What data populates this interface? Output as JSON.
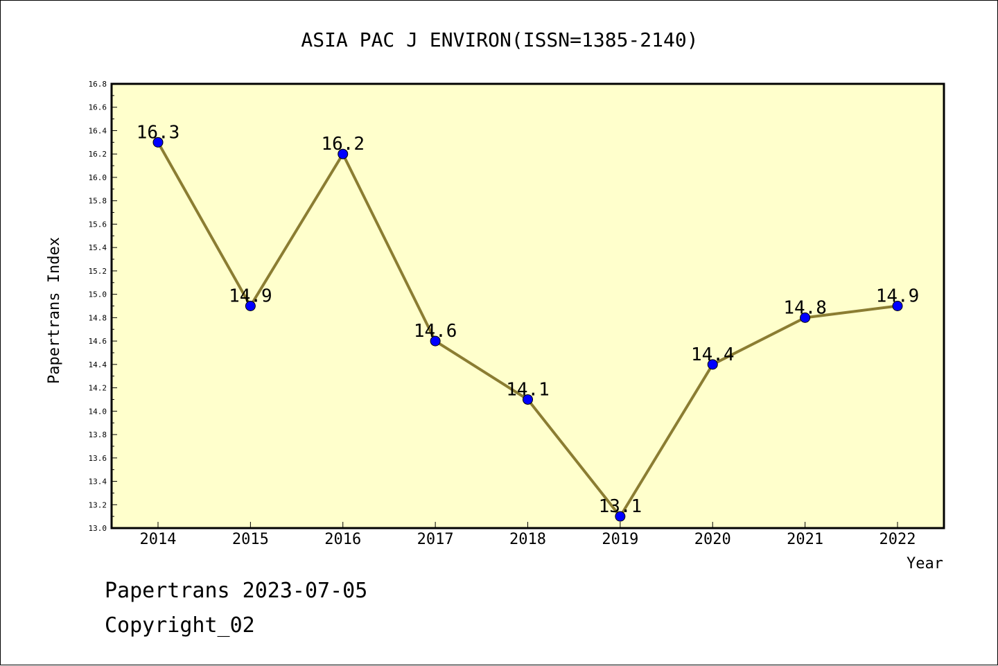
{
  "chart_data": {
    "type": "line",
    "title": "ASIA PAC J ENVIRON(ISSN=1385-2140)",
    "xlabel": "Year",
    "ylabel": "Papertrans Index",
    "categories": [
      "2014",
      "2015",
      "2016",
      "2017",
      "2018",
      "2019",
      "2020",
      "2021",
      "2022"
    ],
    "series": [
      {
        "values": [
          16.3,
          14.9,
          16.2,
          14.6,
          14.1,
          13.1,
          14.4,
          14.8,
          14.9
        ]
      }
    ],
    "data_labels": [
      "16.3",
      "14.9",
      "16.2",
      "14.6",
      "14.1",
      "13.1",
      "14.4",
      "14.8",
      "14.9"
    ],
    "ylim": [
      13.0,
      16.8
    ],
    "yticks": [
      "13.0",
      "13.2",
      "13.4",
      "13.6",
      "13.8",
      "14.0",
      "14.2",
      "14.4",
      "14.6",
      "14.8",
      "15.0",
      "15.2",
      "15.4",
      "15.6",
      "15.8",
      "16.0",
      "16.2",
      "16.4",
      "16.6",
      "16.8"
    ],
    "grid": false,
    "legend": "none"
  },
  "colors": {
    "plot_background": "#ffffcc",
    "line": "#8b7d32",
    "marker": "#0000ff",
    "axis": "#000000"
  },
  "footer": {
    "date_line": "Papertrans 2023-07-05",
    "copyright": "Copyright_02"
  }
}
